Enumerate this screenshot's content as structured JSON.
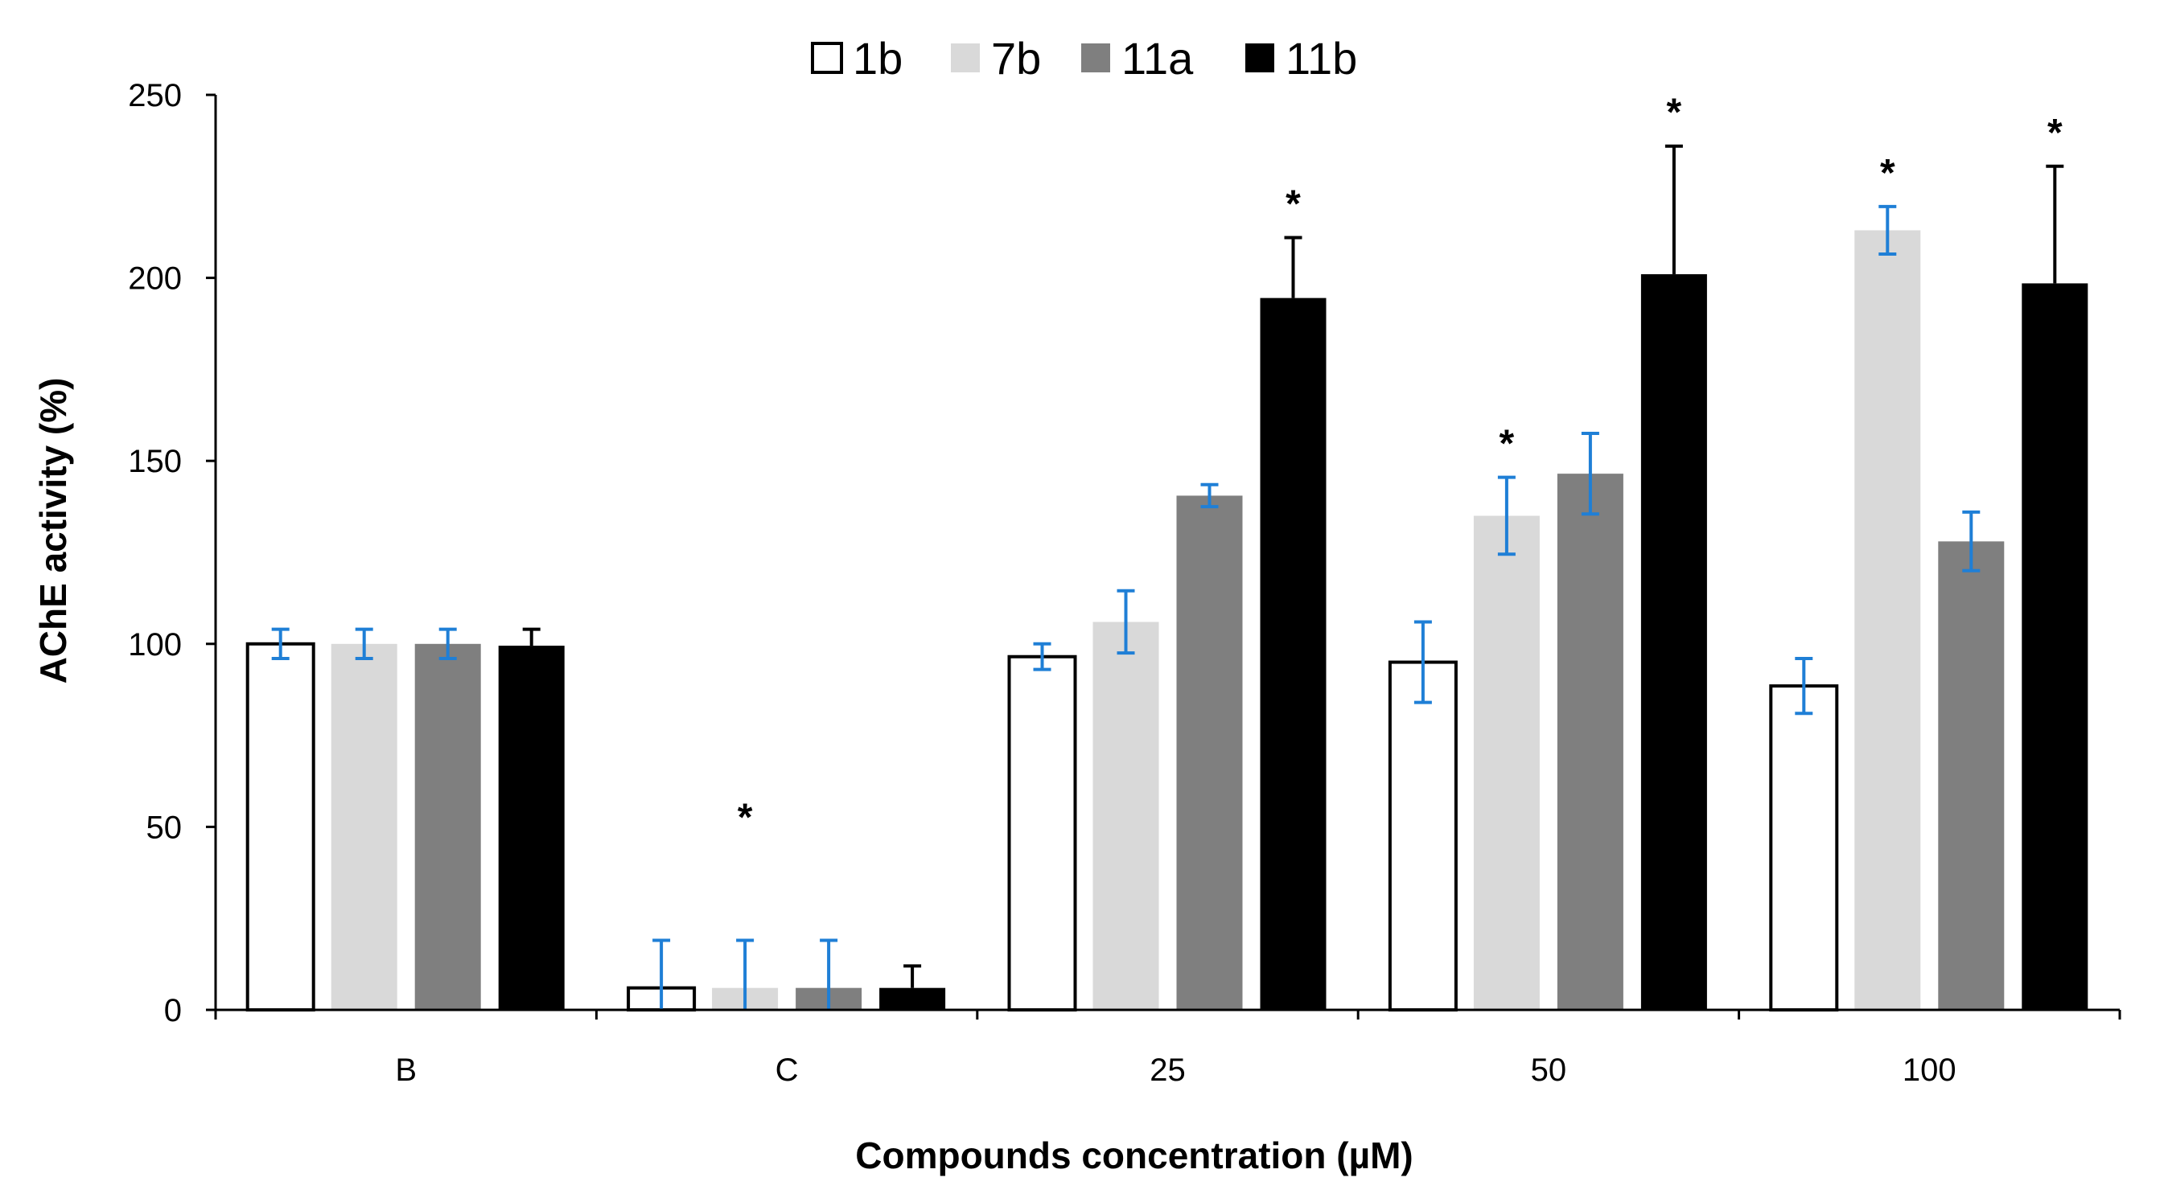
{
  "chart_data": {
    "type": "bar",
    "title": "",
    "xlabel": "Compounds concentration (µM)",
    "ylabel": "AChE activity (%)",
    "ylim": [
      0,
      250
    ],
    "yticks": [
      0,
      50,
      100,
      150,
      200,
      250
    ],
    "categories": [
      "B",
      "C",
      "25",
      "50",
      "100"
    ],
    "legend_position": "top-center",
    "series": [
      {
        "name": "1b",
        "fill": "#ffffff",
        "stroke": "#000000",
        "errorbar_color": "#1f7fd6",
        "values": [
          100,
          6,
          96.5,
          95,
          88.5
        ],
        "errors": [
          4,
          13,
          3.5,
          11,
          7.5
        ],
        "significant": [
          false,
          false,
          false,
          false,
          false
        ]
      },
      {
        "name": "7b",
        "fill": "#d9d9d9",
        "stroke": "none",
        "errorbar_color": "#1f7fd6",
        "values": [
          100,
          6,
          106,
          135,
          213
        ],
        "errors": [
          4,
          13,
          8.5,
          10.5,
          6.5
        ],
        "significant": [
          false,
          true,
          false,
          true,
          true
        ]
      },
      {
        "name": "11a",
        "fill": "#7f7f7f",
        "stroke": "none",
        "errorbar_color": "#1f7fd6",
        "values": [
          100,
          6,
          140.5,
          146.5,
          128
        ],
        "errors": [
          4,
          13,
          3,
          11,
          8
        ],
        "significant": [
          false,
          false,
          false,
          false,
          false
        ]
      },
      {
        "name": "11b",
        "fill": "#000000",
        "stroke": "none",
        "errorbar_color": "#000000",
        "values": [
          99.5,
          6,
          194.5,
          201,
          198.5
        ],
        "errors": [
          4.5,
          6,
          16.5,
          35,
          32
        ],
        "significant": [
          false,
          false,
          true,
          true,
          true
        ]
      }
    ],
    "significance_marker": "*"
  }
}
